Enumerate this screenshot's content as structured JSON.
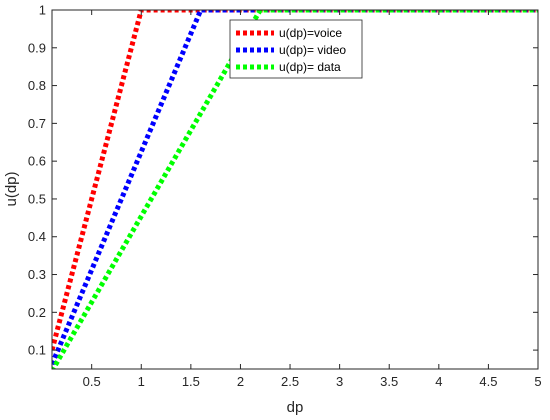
{
  "chart_data": {
    "type": "line",
    "title": "",
    "xlabel": "dp",
    "ylabel": "u(dp)",
    "xlim": [
      0.1,
      5
    ],
    "ylim": [
      0.05,
      1
    ],
    "xticks": [
      0.5,
      1,
      1.5,
      2,
      2.5,
      3,
      3.5,
      4,
      4.5,
      5
    ],
    "xtick_labels": [
      "0.5",
      "1",
      "1.5",
      "2",
      "2.5",
      "3",
      "3.5",
      "4",
      "4.5",
      "5"
    ],
    "yticks": [
      0.1,
      0.2,
      0.3,
      0.4,
      0.5,
      0.6,
      0.7,
      0.8,
      0.9,
      1
    ],
    "ytick_labels": [
      "0.1",
      "0.2",
      "0.3",
      "0.4",
      "0.5",
      "0.6",
      "0.7",
      "0.8",
      "0.9",
      "1"
    ],
    "grid": false,
    "legend_position": "top-center",
    "series": [
      {
        "name": "u(dp)=voice",
        "color": "#ff0000",
        "style": "dotted",
        "x": [
          0.1,
          1.0,
          5.0
        ],
        "y": [
          0.1,
          1.0,
          1.0
        ]
      },
      {
        "name": "u(dp)= video",
        "color": "#0000ff",
        "style": "dotted",
        "x": [
          0.1,
          1.6,
          5.0
        ],
        "y": [
          0.0625,
          1.0,
          1.0
        ]
      },
      {
        "name": "u(dp)= data",
        "color": "#00ff00",
        "style": "dotted",
        "x": [
          0.1,
          2.2,
          5.0
        ],
        "y": [
          0.045,
          1.0,
          1.0
        ]
      }
    ]
  }
}
